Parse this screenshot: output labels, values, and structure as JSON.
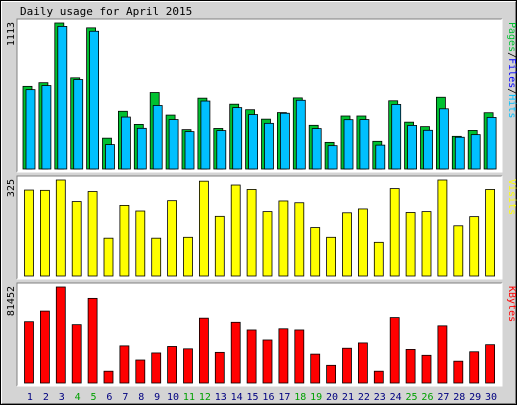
{
  "chart_data": {
    "type": "bar",
    "title": "Daily usage for April 2015",
    "categories": [
      "1",
      "2",
      "3",
      "4",
      "5",
      "6",
      "7",
      "8",
      "9",
      "10",
      "11",
      "12",
      "13",
      "14",
      "15",
      "16",
      "17",
      "18",
      "19",
      "20",
      "21",
      "22",
      "23",
      "24",
      "25",
      "26",
      "27",
      "28",
      "29",
      "30"
    ],
    "weekend_days": [
      "4",
      "5",
      "11",
      "12",
      "18",
      "19",
      "25",
      "26"
    ],
    "colors": {
      "pages": "#00c030",
      "hits": "#00c0ff",
      "visits": "#ffff00",
      "kbytes": "#ff0000",
      "weekday_label": "#000080",
      "weekend_label": "#00a000",
      "panel_bg": "#ffffff",
      "frame": "#d4d4d4"
    },
    "panels": [
      {
        "id": "hits",
        "ylabel_max": "1113",
        "ymax": 1113,
        "legend": [
          {
            "text": "Pages",
            "color": "#00c030"
          },
          {
            "text": "/",
            "color": "#000000"
          },
          {
            "text": "Files",
            "color": "#0000ff"
          },
          {
            "text": "/",
            "color": "#000000"
          },
          {
            "text": "Hits",
            "color": "#00c0ff"
          }
        ],
        "series": [
          {
            "name": "Pages",
            "color": "#00c030",
            "values": [
              630,
              658,
              1113,
              695,
              1076,
              235,
              440,
              340,
              583,
              411,
              300,
              540,
              309,
              494,
              452,
              380,
              430,
              542,
              333,
              203,
              404,
              404,
              211,
              520,
              357,
              323,
              547,
              249,
              294,
              429
            ]
          },
          {
            "name": "Hits",
            "color": "#00c0ff",
            "values": [
              605,
              636,
              1087,
              682,
              1050,
              186,
              396,
              310,
              484,
              377,
              285,
              518,
              293,
              468,
              415,
              348,
              425,
              524,
              308,
              178,
              376,
              377,
              182,
              492,
              332,
              295,
              459,
              242,
              262,
              393
            ]
          }
        ]
      },
      {
        "id": "visits",
        "ylabel_max": "325",
        "ymax": 325,
        "legend": [
          {
            "text": "Visits",
            "color": "#ffff00"
          }
        ],
        "series": [
          {
            "name": "Visits",
            "color": "#ffff00",
            "values": [
              291,
              290,
              325,
              252,
              286,
              128,
              239,
              220,
              128,
              255,
              131,
              321,
              202,
              308,
              293,
              218,
              254,
              248,
              164,
              131,
              214,
              227,
              114,
              296,
              215,
              218,
              325,
              170,
              201,
              293
            ]
          }
        ]
      },
      {
        "id": "kbytes",
        "ylabel_max": "81452",
        "ymax": 81452,
        "legend": [
          {
            "text": "KBytes",
            "color": "#ff0000"
          }
        ],
        "series": [
          {
            "name": "KBytes",
            "color": "#ff0000",
            "values": [
              52000,
              61000,
              81452,
              49500,
              71800,
              10000,
              31500,
              19500,
              25500,
              31000,
              29000,
              55000,
              26000,
              51500,
              45000,
              36500,
              46000,
              45000,
              24500,
              15000,
              29500,
              34000,
              10000,
              55500,
              28500,
              23500,
              48500,
              18500,
              26500,
              32500
            ]
          }
        ]
      }
    ]
  }
}
